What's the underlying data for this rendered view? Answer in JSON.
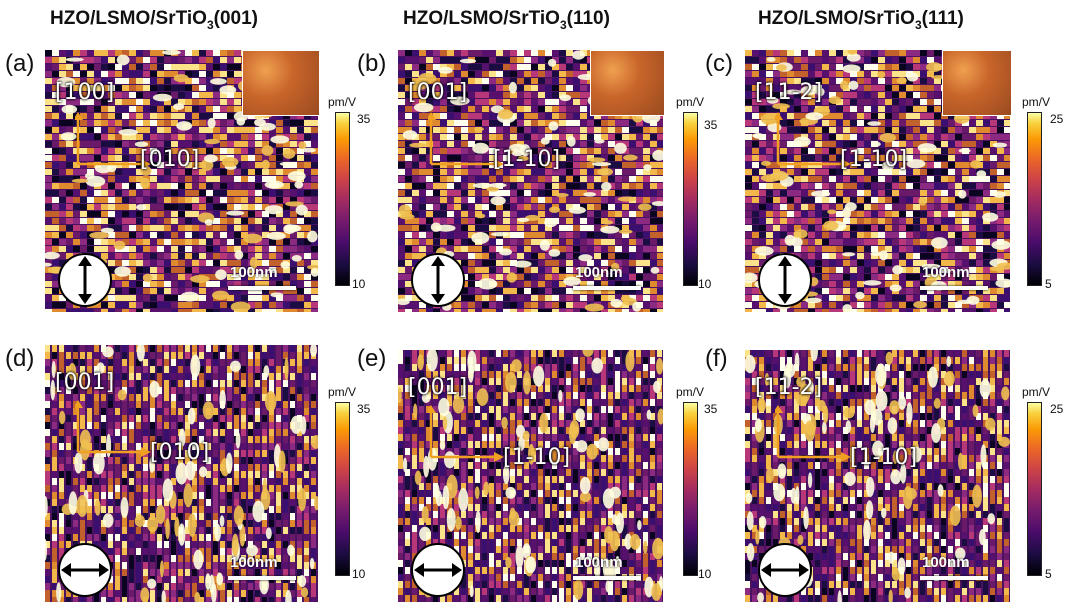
{
  "titles": {
    "col1": {
      "main": "HZO/LSMO/SrTiO",
      "sub": "3",
      "tail": "(001)"
    },
    "col2": {
      "main": "HZO/LSMO/SrTiO",
      "sub": "3",
      "tail": "(110)"
    },
    "col3": {
      "main": "HZO/LSMO/SrTiO",
      "sub": "3",
      "tail": "(111)"
    }
  },
  "panels": [
    {
      "label": "(a)",
      "dir_v": "[100]",
      "dir_h": "[010]",
      "scale": "100nm",
      "cb_unit": "pm/V",
      "cb_max": "35",
      "cb_min": "10",
      "arrow": "vertical"
    },
    {
      "label": "(b)",
      "dir_v": "[001]",
      "dir_h": "[1-10]",
      "scale": "100nm",
      "cb_unit": "pm/V",
      "cb_max": "35",
      "cb_min": "10",
      "arrow": "vertical"
    },
    {
      "label": "(c)",
      "dir_v": "[11-2]",
      "dir_h": "[1-10]",
      "scale": "100nm",
      "cb_unit": "pm/V",
      "cb_max": "25",
      "cb_min": "5",
      "arrow": "vertical"
    },
    {
      "label": "(d)",
      "dir_v": "[001]",
      "dir_h": "[010]",
      "scale": "100nm",
      "cb_unit": "pm/V",
      "cb_max": "35",
      "cb_min": "10",
      "arrow": "horizontal"
    },
    {
      "label": "(e)",
      "dir_v": "[001]",
      "dir_h": "[1-10]",
      "scale": "100nm",
      "cb_unit": "pm/V",
      "cb_max": "35",
      "cb_min": "10",
      "arrow": "horizontal"
    },
    {
      "label": "(f)",
      "dir_v": "[11-2]",
      "dir_h": "[1-10]",
      "scale": "100nm",
      "cb_unit": "pm/V",
      "cb_max": "25",
      "cb_min": "5",
      "arrow": "horizontal"
    }
  ],
  "colors": {
    "orange_arrow": "#f0a020",
    "low": "#1b0c41",
    "high": "#fcffa4"
  }
}
